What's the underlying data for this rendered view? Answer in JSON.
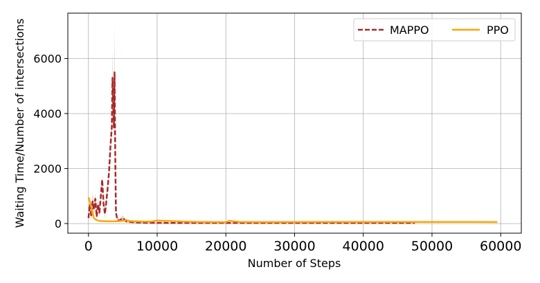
{
  "chart_data": {
    "type": "line",
    "title": "",
    "xlabel": "Number of Steps",
    "ylabel": "Waiting Time/Number of intersections",
    "xlim": [
      -3000,
      63000
    ],
    "ylim": [
      -350,
      7650
    ],
    "xticks": [
      0,
      10000,
      20000,
      30000,
      40000,
      50000,
      60000
    ],
    "xtick_labels": [
      "0",
      "10000",
      "20000",
      "30000",
      "40000",
      "50000",
      "60000"
    ],
    "yticks": [
      0,
      2000,
      4000,
      6000
    ],
    "ytick_labels": [
      "0",
      "2000",
      "4000",
      "6000"
    ],
    "grid": true,
    "legend_position": "top-right",
    "series": [
      {
        "name": "MAPPO",
        "color": "#a52a2a",
        "style": "dashed",
        "band_color": "#d8b0b0",
        "x": [
          0,
          200,
          400,
          600,
          800,
          1000,
          1200,
          1400,
          1600,
          1800,
          2000,
          2200,
          2400,
          2600,
          2800,
          3000,
          3200,
          3400,
          3500,
          3600,
          3700,
          3800,
          3900,
          4000,
          4200,
          4500,
          5000,
          5500,
          6000,
          7000,
          8000,
          10000,
          12000,
          15000,
          20000,
          25000,
          30000,
          35000,
          40000,
          45000,
          47500
        ],
        "y": [
          200,
          700,
          300,
          800,
          500,
          900,
          250,
          700,
          400,
          1000,
          1600,
          700,
          350,
          800,
          1300,
          1900,
          2800,
          3500,
          5300,
          4400,
          3500,
          5500,
          2500,
          400,
          150,
          100,
          200,
          80,
          60,
          40,
          30,
          25,
          20,
          20,
          20,
          20,
          20,
          20,
          20,
          20,
          20
        ],
        "upper": [
          250,
          1000,
          500,
          1100,
          800,
          1100,
          400,
          900,
          600,
          1200,
          1750,
          900,
          500,
          1000,
          1500,
          2100,
          3100,
          3800,
          6300,
          5000,
          4000,
          7300,
          3200,
          600,
          250,
          180,
          300,
          140,
          100,
          70,
          50,
          45,
          35,
          35,
          35,
          35,
          35,
          35,
          35,
          35,
          35
        ],
        "lower": [
          150,
          400,
          150,
          500,
          250,
          700,
          120,
          500,
          250,
          800,
          1400,
          500,
          200,
          600,
          1100,
          1700,
          2500,
          3200,
          4300,
          3800,
          3000,
          3800,
          1800,
          250,
          80,
          50,
          100,
          30,
          30,
          15,
          10,
          10,
          5,
          5,
          5,
          5,
          5,
          5,
          5,
          5,
          5
        ]
      },
      {
        "name": "PPO",
        "color": "#ffa500",
        "style": "solid",
        "x": [
          0,
          200,
          400,
          600,
          800,
          1000,
          1500,
          2000,
          3000,
          4000,
          5000,
          5500,
          6000,
          7000,
          8000,
          9000,
          10000,
          11000,
          12000,
          14000,
          16000,
          18000,
          20000,
          20500,
          22000,
          25000,
          30000,
          35000,
          40000,
          45000,
          50000,
          55000,
          59500
        ],
        "y": [
          950,
          800,
          600,
          350,
          200,
          150,
          100,
          90,
          80,
          85,
          100,
          130,
          90,
          80,
          70,
          70,
          110,
          100,
          90,
          70,
          60,
          55,
          50,
          100,
          60,
          55,
          55,
          60,
          60,
          60,
          60,
          60,
          55
        ]
      }
    ]
  }
}
